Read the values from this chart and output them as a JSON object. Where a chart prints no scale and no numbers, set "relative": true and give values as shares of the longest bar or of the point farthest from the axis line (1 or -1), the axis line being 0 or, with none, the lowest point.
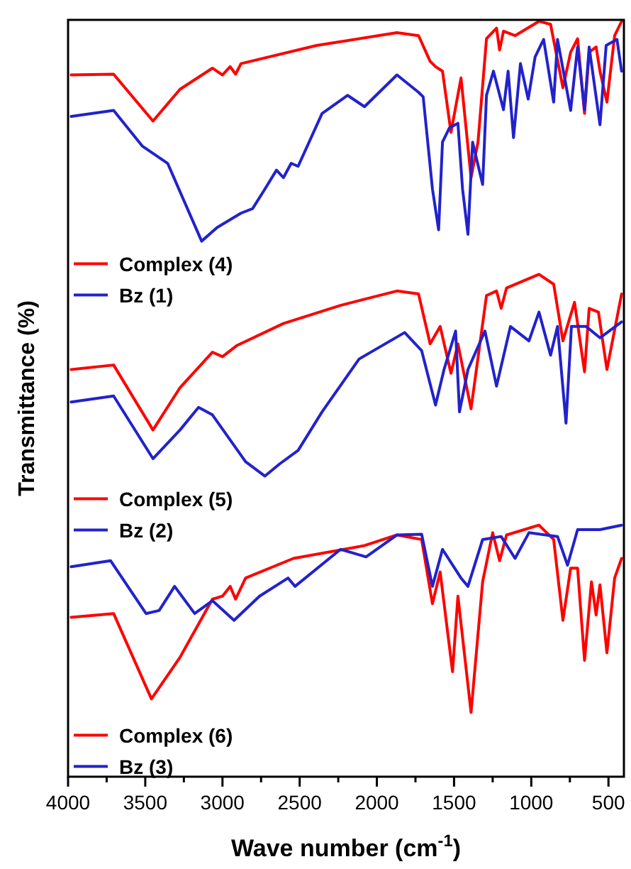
{
  "chart_data": {
    "type": "line",
    "xlabel": "Wave number (cm$^{-1}$)",
    "ylabel": "Transmittance (%)",
    "relative": true,
    "legend": "bottom left",
    "xlim": [
      4000,
      400
    ],
    "xticks": [
      4000,
      {
        "value": 3750,
        "label": null
      },
      3500,
      {
        "value": 3250,
        "label": null
      },
      3000,
      {
        "value": 2750,
        "label": null
      },
      2500,
      {
        "value": 2250,
        "label": null
      },
      2000,
      {
        "value": 1750,
        "label": null
      },
      1500,
      {
        "value": 1250,
        "label": null
      },
      1000,
      {
        "value": 750,
        "label": null
      },
      500
    ],
    "series": [
      {
        "name": "Complex (4)",
        "color": "#ff0000",
        "x": [
          3980,
          3705,
          3450,
          3275,
          3065,
          3000,
          2950,
          2915,
          2880,
          2390,
          1870,
          1730,
          1655,
          1620,
          1575,
          1520,
          1455,
          1390,
          1345,
          1290,
          1225,
          1205,
          1180,
          1105,
          950,
          875,
          795,
          745,
          700,
          655,
          625,
          580,
          555,
          510,
          460,
          415
        ],
        "values": [
          0.929,
          0.93,
          0.868,
          0.91,
          0.938,
          0.929,
          0.94,
          0.93,
          0.944,
          0.968,
          0.985,
          0.981,
          0.947,
          0.94,
          0.934,
          0.853,
          0.925,
          0.793,
          0.84,
          0.977,
          0.991,
          0.962,
          0.987,
          0.981,
          1,
          0.996,
          0.912,
          0.959,
          0.977,
          0.878,
          0.959,
          0.966,
          0.934,
          0.893,
          0.981,
          1
        ]
      },
      {
        "name": "Bz (1)",
        "color": "#2222cc",
        "x": [
          3980,
          3705,
          3520,
          3355,
          3135,
          3035,
          2880,
          2805,
          2725,
          2650,
          2605,
          2555,
          2510,
          2355,
          2190,
          2080,
          1870,
          1730,
          1700,
          1640,
          1600,
          1575,
          1530,
          1475,
          1445,
          1410,
          1380,
          1315,
          1290,
          1245,
          1180,
          1150,
          1115,
          1070,
          1020,
          975,
          920,
          855,
          830,
          745,
          700,
          655,
          625,
          555,
          515,
          445,
          415
        ],
        "values": [
          0.874,
          0.882,
          0.835,
          0.812,
          0.709,
          0.727,
          0.746,
          0.752,
          0.778,
          0.803,
          0.793,
          0.812,
          0.808,
          0.878,
          0.902,
          0.887,
          0.929,
          0.906,
          0.9,
          0.778,
          0.724,
          0.84,
          0.859,
          0.865,
          0.778,
          0.718,
          0.84,
          0.784,
          0.902,
          0.934,
          0.883,
          0.934,
          0.846,
          0.944,
          0.897,
          0.953,
          0.976,
          0.893,
          0.976,
          0.882,
          0.966,
          0.883,
          0.966,
          0.863,
          0.968,
          0.976,
          0.934
        ]
      },
      {
        "name": "Complex (5)",
        "color": "#ff0000",
        "x": [
          3980,
          3705,
          3450,
          3275,
          3065,
          3000,
          2905,
          2605,
          2235,
          1870,
          1730,
          1655,
          1590,
          1520,
          1475,
          1390,
          1290,
          1225,
          1195,
          1160,
          950,
          855,
          795,
          720,
          655,
          625,
          565,
          510,
          415
        ],
        "values": [
          0.539,
          0.545,
          0.459,
          0.515,
          0.562,
          0.556,
          0.571,
          0.6,
          0.624,
          0.643,
          0.639,
          0.573,
          0.596,
          0.534,
          0.573,
          0.487,
          0.637,
          0.643,
          0.62,
          0.647,
          0.665,
          0.652,
          0.577,
          0.628,
          0.536,
          0.62,
          0.615,
          0.539,
          0.639
        ]
      },
      {
        "name": "Bz (2)",
        "color": "#2222cc",
        "x": [
          3980,
          3705,
          3450,
          3275,
          3155,
          3065,
          2850,
          2725,
          2630,
          2510,
          2355,
          2115,
          1820,
          1710,
          1620,
          1565,
          1490,
          1465,
          1410,
          1300,
          1225,
          1135,
          1015,
          950,
          875,
          830,
          775,
          740,
          645,
          555,
          415
        ],
        "values": [
          0.496,
          0.504,
          0.421,
          0.459,
          0.489,
          0.479,
          0.417,
          0.398,
          0.414,
          0.432,
          0.483,
          0.553,
          0.588,
          0.564,
          0.492,
          0.539,
          0.59,
          0.483,
          0.539,
          0.59,
          0.517,
          0.596,
          0.577,
          0.615,
          0.558,
          0.596,
          0.468,
          0.596,
          0.596,
          0.581,
          0.602
        ]
      },
      {
        "name": "Complex (6)",
        "color": "#ff0000",
        "x": [
          3980,
          3705,
          3460,
          3275,
          3065,
          3000,
          2950,
          2915,
          2850,
          2540,
          2080,
          1870,
          1710,
          1640,
          1590,
          1510,
          1475,
          1390,
          1315,
          1250,
          1205,
          1160,
          950,
          855,
          795,
          745,
          700,
          655,
          610,
          580,
          555,
          510,
          460,
          415
        ],
        "values": [
          0.211,
          0.216,
          0.103,
          0.158,
          0.235,
          0.239,
          0.252,
          0.235,
          0.263,
          0.289,
          0.306,
          0.32,
          0.314,
          0.229,
          0.271,
          0.139,
          0.239,
          0.085,
          0.258,
          0.323,
          0.286,
          0.32,
          0.333,
          0.314,
          0.207,
          0.276,
          0.276,
          0.154,
          0.258,
          0.214,
          0.254,
          0.164,
          0.263,
          0.289
        ]
      },
      {
        "name": "Bz (3)",
        "color": "#2222cc",
        "x": [
          3980,
          3725,
          3495,
          3410,
          3310,
          3180,
          3065,
          2925,
          2760,
          2575,
          2530,
          2235,
          2070,
          1870,
          1710,
          1640,
          1575,
          1455,
          1410,
          1315,
          1195,
          1105,
          1015,
          830,
          765,
          700,
          555,
          415
        ],
        "values": [
          0.278,
          0.286,
          0.216,
          0.22,
          0.252,
          0.216,
          0.233,
          0.207,
          0.239,
          0.263,
          0.252,
          0.301,
          0.291,
          0.32,
          0.321,
          0.252,
          0.301,
          0.263,
          0.252,
          0.314,
          0.318,
          0.289,
          0.323,
          0.318,
          0.28,
          0.327,
          0.327,
          0.333
        ]
      }
    ]
  }
}
